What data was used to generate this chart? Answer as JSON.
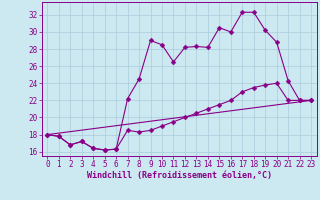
{
  "background_color": "#cce8f0",
  "grid_color": "#aaccdd",
  "line_color": "#880088",
  "xlim": [
    -0.5,
    23.5
  ],
  "ylim": [
    15.5,
    33.5
  ],
  "xticks": [
    0,
    1,
    2,
    3,
    4,
    5,
    6,
    7,
    8,
    9,
    10,
    11,
    12,
    13,
    14,
    15,
    16,
    17,
    18,
    19,
    20,
    21,
    22,
    23
  ],
  "yticks": [
    16,
    18,
    20,
    22,
    24,
    26,
    28,
    30,
    32
  ],
  "xlabel": "Windchill (Refroidissement éolien,°C)",
  "line1_x": [
    0,
    1,
    2,
    3,
    4,
    5,
    6,
    7,
    8,
    9,
    10,
    11,
    12,
    13,
    14,
    15,
    16,
    17,
    18,
    19,
    20,
    21,
    22,
    23
  ],
  "line1_y": [
    18,
    17.8,
    16.8,
    17.2,
    16.4,
    16.2,
    16.3,
    22.2,
    24.5,
    29.0,
    28.5,
    26.5,
    28.2,
    28.3,
    28.2,
    30.5,
    30.0,
    32.3,
    32.3,
    30.2,
    28.8,
    24.3,
    22.0,
    22.0
  ],
  "line2_x": [
    0,
    1,
    2,
    3,
    4,
    5,
    6,
    7,
    8,
    9,
    10,
    11,
    12,
    13,
    14,
    15,
    16,
    17,
    18,
    19,
    20,
    21,
    22,
    23
  ],
  "line2_y": [
    18,
    17.8,
    16.8,
    17.2,
    16.4,
    16.2,
    16.3,
    18.5,
    18.3,
    18.5,
    19.0,
    19.5,
    20.0,
    20.5,
    21.0,
    21.5,
    22.0,
    23.0,
    23.5,
    23.8,
    24.0,
    22.0,
    22.0,
    22.0
  ],
  "line3_x": [
    0,
    23
  ],
  "line3_y": [
    18,
    22
  ],
  "marker_size": 2.5,
  "line_width": 0.8,
  "tick_fontsize": 5.5,
  "xlabel_fontsize": 6.0
}
